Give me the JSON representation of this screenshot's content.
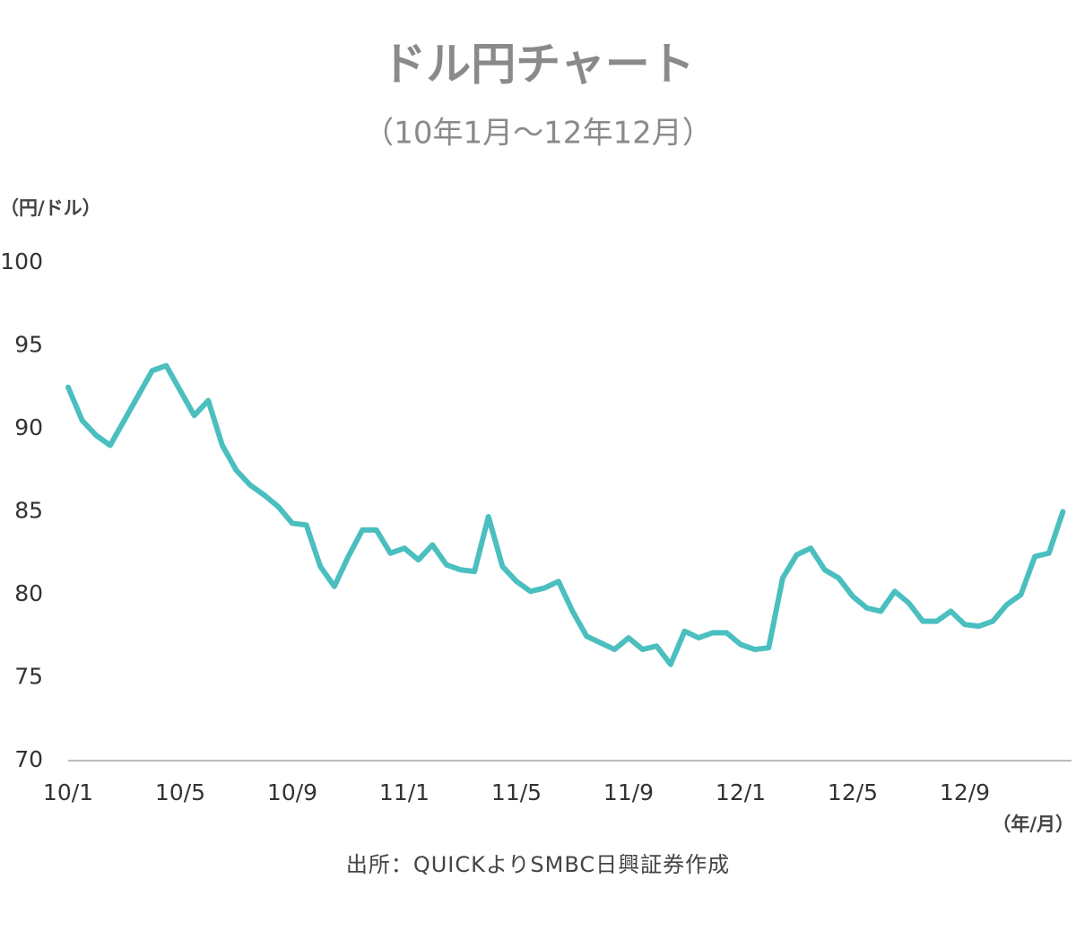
{
  "chart_data": {
    "type": "line",
    "title": "ドル円チャート",
    "subtitle": "（10年1月～12年12月）",
    "y_label": "（円/ドル）",
    "x_label": "（年/月）",
    "source": "出所：QUICKよりSMBC日興証券作成",
    "categories": [
      "10/1",
      null,
      null,
      null,
      null,
      null,
      null,
      null,
      "10/5",
      null,
      null,
      null,
      null,
      null,
      null,
      null,
      "10/9",
      null,
      null,
      null,
      null,
      null,
      null,
      null,
      "11/1",
      null,
      null,
      null,
      null,
      null,
      null,
      null,
      "11/5",
      null,
      null,
      null,
      null,
      null,
      null,
      null,
      "11/9",
      null,
      null,
      null,
      null,
      null,
      null,
      null,
      "12/1",
      null,
      null,
      null,
      null,
      null,
      null,
      null,
      "12/5",
      null,
      null,
      null,
      null,
      null,
      null,
      null,
      "12/9",
      null,
      null,
      null,
      null,
      null,
      null,
      null
    ],
    "series": [
      {
        "name": "ドル円",
        "color": "#4bbfbf",
        "values": [
          92.5,
          90.5,
          89.6,
          89.0,
          90.5,
          92.0,
          93.5,
          93.8,
          92.3,
          90.8,
          91.7,
          89.0,
          87.5,
          86.6,
          86.0,
          85.3,
          84.3,
          84.2,
          81.7,
          80.5,
          82.3,
          83.9,
          83.9,
          82.5,
          82.8,
          82.1,
          83.0,
          81.8,
          81.5,
          81.4,
          84.7,
          81.7,
          80.8,
          80.2,
          80.4,
          80.8,
          79.0,
          77.5,
          77.1,
          76.7,
          77.4,
          76.7,
          76.9,
          75.8,
          77.8,
          77.4,
          77.7,
          77.7,
          77.0,
          76.7,
          76.8,
          81.0,
          82.4,
          82.8,
          81.5,
          81.0,
          79.9,
          79.2,
          79.0,
          80.2,
          79.5,
          78.4,
          78.4,
          79.0,
          78.2,
          78.1,
          78.4,
          79.4,
          80.0,
          82.3,
          82.5,
          85.0
        ]
      }
    ],
    "ylim": [
      70,
      100
    ],
    "yticks": [
      70,
      75,
      80,
      85,
      90,
      95,
      100
    ],
    "grid": false
  }
}
